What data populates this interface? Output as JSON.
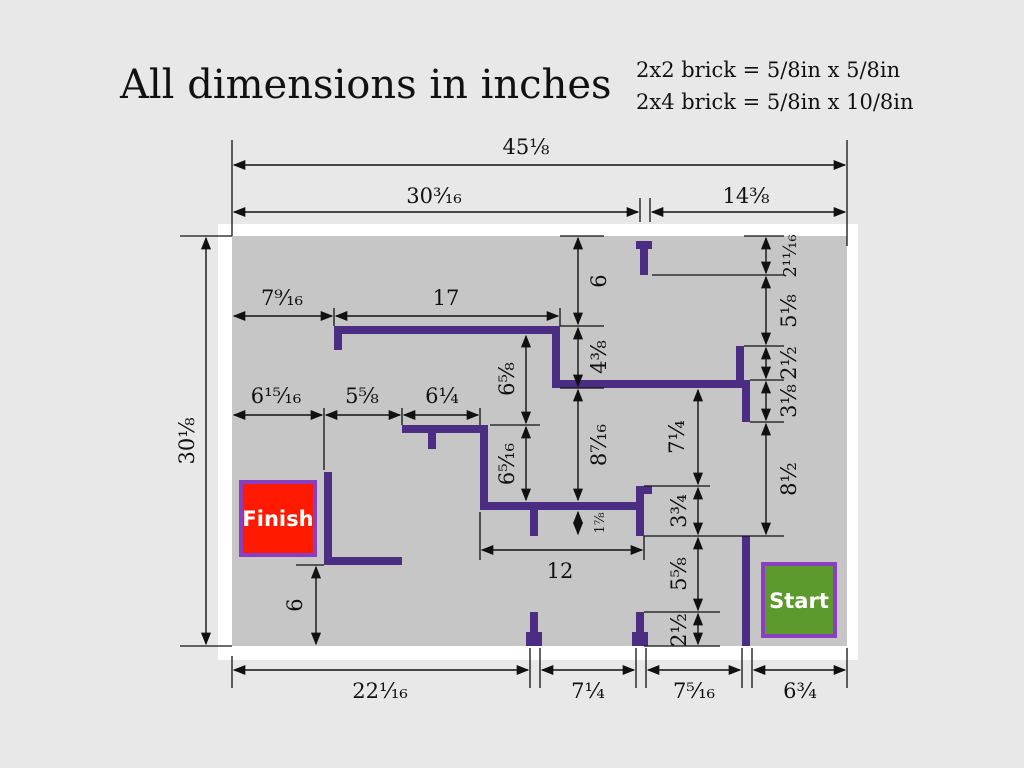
{
  "title": "All dimensions in inches",
  "notes": [
    "2x2 brick = 5/8in x 5/8in",
    "2x4 brick = 5/8in x 10/8in"
  ],
  "colors": {
    "board": "#c6c6c6",
    "wall": "#4b2d84",
    "finish_fill": "#ff1a00",
    "finish_border": "#8a3fc0",
    "start_fill": "#5d9a2e",
    "start_border": "#8a3fc0"
  },
  "markers": {
    "finish": "Finish",
    "start": "Start"
  },
  "dimensions": {
    "overall_width": "45⅛",
    "top_left_span": "30³⁄₁₆",
    "top_right_span": "14³⁄₈",
    "overall_height": "30⅛",
    "left_to_wall1": "7⁹⁄₁₆",
    "wall1_length": "17",
    "left_to_wall3": "6¹⁵⁄₁₆",
    "wall3_to_wall4": "5⁵⁄₈",
    "wall4_length": "6¹⁄₄",
    "top_stub_gap": "6",
    "right_top_gap": "2¹¹⁄₁₆",
    "right_gap_a": "5¹⁄₈",
    "right_gap_b": "2¹⁄₂",
    "right_gap_c": "3¹⁄₈",
    "right_gap_d": "8¹⁄₂",
    "center_a": "6⁵⁄₈",
    "center_b": "4³⁄₈",
    "center_c": "6⁵⁄₁₆",
    "center_d": "8⁷⁄₁₆",
    "center_e": "7¹⁄₄",
    "center_f": "3³⁄₄",
    "center_g": "1⁷⁄₈",
    "bottom_wall_length": "12",
    "bottom_right_a": "5⁵⁄₈",
    "bottom_right_b": "2¹⁄₂",
    "finish_gap": "6",
    "bottom_a": "22¹⁄₁₆",
    "bottom_b": "7¹⁄₄",
    "bottom_c": "7⁵⁄₁₆",
    "bottom_d": "6³⁄₄"
  }
}
